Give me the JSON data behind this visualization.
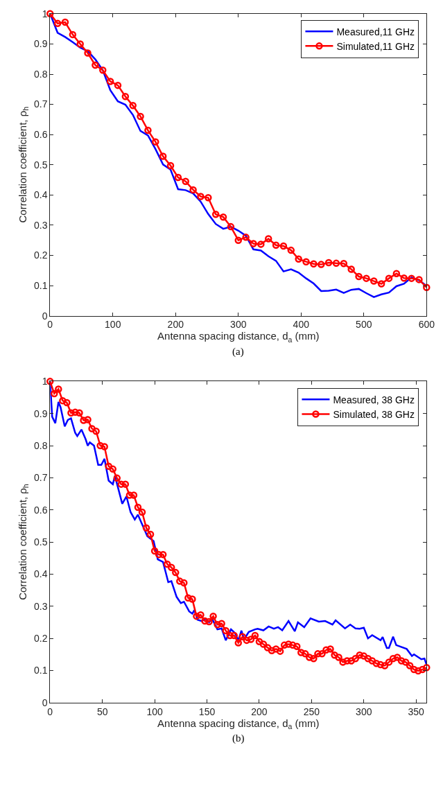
{
  "chart_data": [
    {
      "type": "line",
      "xlabel": "Antenna spacing distance, d$_{a}$ (mm)",
      "ylabel": "Correlation coefficient, ρ$_{h}$",
      "annotations": [
        "(a)"
      ],
      "xlim": [
        0,
        600
      ],
      "xticks": [
        0,
        100,
        200,
        300,
        400,
        500,
        600
      ],
      "ylim": [
        0,
        1
      ],
      "yticks": [
        0,
        0.1,
        0.2,
        0.3,
        0.4,
        0.5,
        0.6,
        0.7,
        0.8,
        0.9,
        1
      ],
      "legend": "top right",
      "series": [
        {
          "name": "Measured,11 GHz",
          "color": "#0000ff",
          "marker": "none",
          "x": [
            0,
            12,
            24,
            36,
            48,
            60,
            72,
            84,
            96,
            108,
            120,
            132,
            144,
            156,
            168,
            180,
            192,
            204,
            216,
            228,
            240,
            252,
            264,
            276,
            288,
            300,
            312,
            324,
            336,
            348,
            360,
            372,
            384,
            396,
            408,
            420,
            432,
            444,
            456,
            468,
            480,
            492,
            504,
            516,
            528,
            540,
            552,
            564,
            576,
            588,
            600
          ],
          "values": [
            1.0,
            0.937,
            0.923,
            0.906,
            0.888,
            0.876,
            0.849,
            0.813,
            0.747,
            0.71,
            0.699,
            0.665,
            0.612,
            0.597,
            0.552,
            0.501,
            0.484,
            0.419,
            0.416,
            0.405,
            0.378,
            0.337,
            0.304,
            0.288,
            0.295,
            0.282,
            0.265,
            0.22,
            0.216,
            0.197,
            0.182,
            0.147,
            0.154,
            0.143,
            0.124,
            0.107,
            0.082,
            0.083,
            0.087,
            0.076,
            0.086,
            0.089,
            0.075,
            0.062,
            0.071,
            0.077,
            0.098,
            0.106,
            0.127,
            0.118,
            0.099
          ]
        },
        {
          "name": "Simulated,11 GHz",
          "color": "#ff0000",
          "marker": "circle",
          "x": [
            0,
            12,
            24,
            36,
            48,
            60,
            72,
            84,
            96,
            108,
            120,
            132,
            144,
            156,
            168,
            180,
            192,
            204,
            216,
            228,
            240,
            252,
            264,
            276,
            288,
            300,
            312,
            324,
            336,
            348,
            360,
            372,
            384,
            396,
            408,
            420,
            432,
            444,
            456,
            468,
            480,
            492,
            504,
            516,
            528,
            540,
            552,
            564,
            576,
            588,
            600
          ],
          "values": [
            1.0,
            0.968,
            0.972,
            0.931,
            0.9,
            0.87,
            0.83,
            0.813,
            0.776,
            0.763,
            0.726,
            0.696,
            0.66,
            0.614,
            0.576,
            0.528,
            0.497,
            0.458,
            0.445,
            0.417,
            0.395,
            0.391,
            0.336,
            0.327,
            0.295,
            0.25,
            0.26,
            0.239,
            0.237,
            0.255,
            0.234,
            0.231,
            0.217,
            0.188,
            0.179,
            0.172,
            0.17,
            0.176,
            0.174,
            0.173,
            0.154,
            0.13,
            0.124,
            0.115,
            0.106,
            0.124,
            0.14,
            0.125,
            0.124,
            0.12,
            0.094
          ]
        }
      ]
    },
    {
      "type": "line",
      "xlabel": "Antenna spacing distance, d$_{a}$ (mm)",
      "ylabel": "Correlation coefficient, ρ$_{h}$",
      "annotations": [
        "(b)"
      ],
      "xlim": [
        0,
        360
      ],
      "xticks": [
        0,
        50,
        100,
        150,
        200,
        250,
        300,
        350
      ],
      "ylim": [
        0,
        1
      ],
      "yticks": [
        0,
        0.1,
        0.2,
        0.3,
        0.4,
        0.5,
        0.6,
        0.7,
        0.8,
        0.9,
        1
      ],
      "legend": "top right",
      "series": [
        {
          "name": "Measured, 38 GHz",
          "color": "#0000ff",
          "marker": "none",
          "x": [
            0,
            2,
            5,
            8,
            10,
            14,
            17,
            20,
            24,
            26,
            30,
            34,
            36,
            38,
            42,
            46,
            49,
            52,
            56,
            60,
            62,
            69,
            73,
            77,
            81,
            84,
            93,
            99,
            103,
            108,
            113,
            116,
            121,
            125,
            128,
            133,
            136,
            138,
            141,
            145,
            149,
            152,
            155,
            160,
            164,
            168,
            173,
            177,
            180,
            183,
            185.5,
            190,
            196,
            198.5,
            204,
            209,
            214,
            218,
            222,
            228,
            234,
            237,
            243,
            249,
            257,
            263,
            270,
            273,
            282,
            287,
            292,
            296,
            300,
            304,
            308,
            316,
            318,
            322,
            324,
            328,
            331,
            341,
            346,
            348,
            355,
            358,
            360
          ],
          "values": [
            1.0,
            0.89,
            0.87,
            0.936,
            0.92,
            0.86,
            0.88,
            0.885,
            0.84,
            0.83,
            0.85,
            0.82,
            0.8,
            0.81,
            0.8,
            0.74,
            0.74,
            0.759,
            0.691,
            0.68,
            0.706,
            0.619,
            0.642,
            0.593,
            0.57,
            0.585,
            0.518,
            0.503,
            0.446,
            0.438,
            0.375,
            0.378,
            0.329,
            0.31,
            0.314,
            0.284,
            0.277,
            0.288,
            0.258,
            0.254,
            0.261,
            0.25,
            0.261,
            0.228,
            0.231,
            0.194,
            0.228,
            0.216,
            0.194,
            0.224,
            0.197,
            0.22,
            0.228,
            0.23,
            0.225,
            0.237,
            0.23,
            0.235,
            0.225,
            0.254,
            0.222,
            0.25,
            0.235,
            0.262,
            0.252,
            0.254,
            0.243,
            0.256,
            0.231,
            0.243,
            0.231,
            0.23,
            0.233,
            0.2,
            0.21,
            0.194,
            0.204,
            0.17,
            0.17,
            0.205,
            0.179,
            0.167,
            0.145,
            0.15,
            0.135,
            0.137,
            0.118
          ]
        },
        {
          "name": "Simulated, 38 GHz",
          "color": "#ff0000",
          "marker": "circle",
          "x": [
            0,
            4,
            8,
            12,
            16,
            20,
            24,
            28,
            32,
            36,
            40,
            44,
            48,
            52,
            56,
            60,
            64,
            68,
            72,
            76,
            80,
            84,
            88,
            92,
            96,
            100,
            104,
            108,
            112,
            116,
            120,
            124,
            128,
            132,
            136,
            140,
            144,
            148,
            152,
            156,
            160,
            164,
            168,
            172,
            176,
            180,
            184,
            188,
            192,
            196,
            200,
            204,
            208,
            212,
            216,
            220,
            224,
            228,
            232,
            236,
            240,
            244,
            248,
            252,
            256,
            260,
            264,
            268,
            272,
            276,
            280,
            284,
            288,
            292,
            296,
            300,
            304,
            308,
            312,
            316,
            320,
            324,
            328,
            332,
            336,
            340,
            344,
            348,
            352,
            356,
            360
          ],
          "values": [
            1.0,
            0.962,
            0.976,
            0.94,
            0.934,
            0.902,
            0.904,
            0.902,
            0.879,
            0.881,
            0.853,
            0.845,
            0.8,
            0.797,
            0.736,
            0.727,
            0.699,
            0.68,
            0.68,
            0.646,
            0.646,
            0.608,
            0.593,
            0.544,
            0.524,
            0.472,
            0.461,
            0.461,
            0.431,
            0.421,
            0.405,
            0.378,
            0.373,
            0.326,
            0.322,
            0.269,
            0.273,
            0.254,
            0.252,
            0.269,
            0.243,
            0.246,
            0.224,
            0.209,
            0.209,
            0.186,
            0.205,
            0.194,
            0.197,
            0.209,
            0.19,
            0.182,
            0.171,
            0.162,
            0.167,
            0.16,
            0.179,
            0.182,
            0.179,
            0.175,
            0.156,
            0.152,
            0.141,
            0.137,
            0.152,
            0.152,
            0.164,
            0.167,
            0.148,
            0.141,
            0.126,
            0.13,
            0.13,
            0.137,
            0.148,
            0.145,
            0.137,
            0.13,
            0.122,
            0.118,
            0.115,
            0.126,
            0.137,
            0.141,
            0.13,
            0.126,
            0.115,
            0.103,
            0.099,
            0.103,
            0.109
          ]
        }
      ]
    }
  ]
}
